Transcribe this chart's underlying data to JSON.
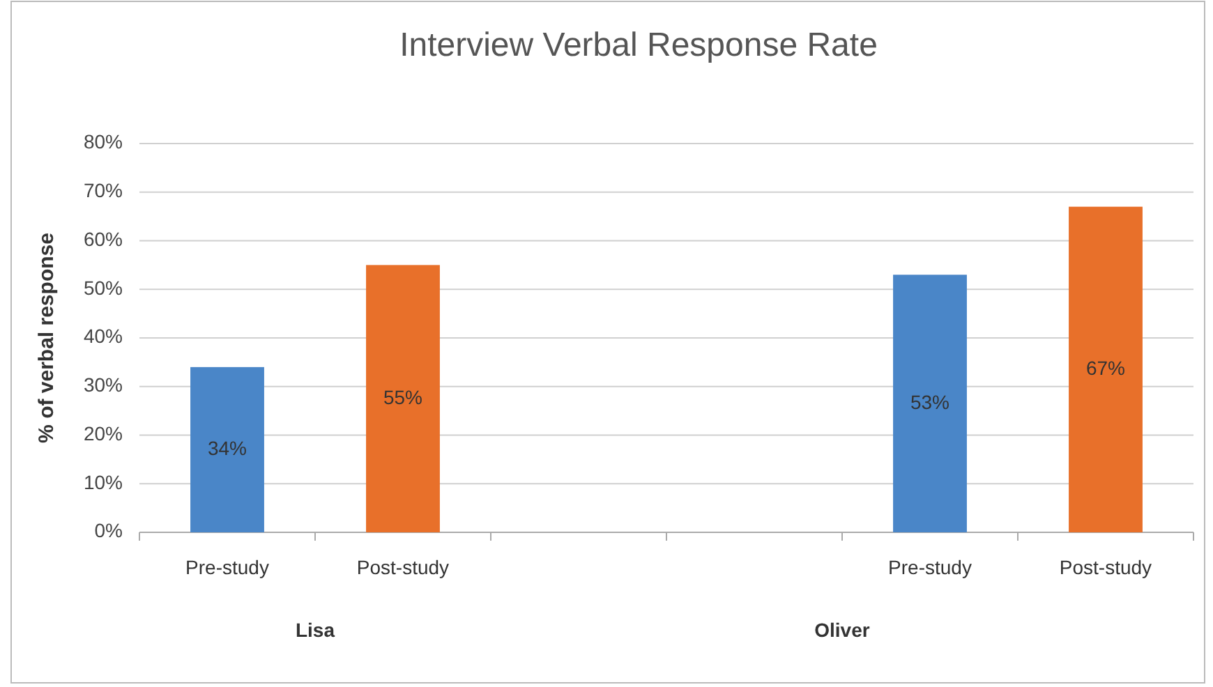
{
  "chart_data": {
    "type": "bar",
    "title": "Interview Verbal Response Rate",
    "ylabel": "% of verbal response",
    "categories": [
      "Pre-study",
      "Post-study",
      null,
      null,
      "Pre-study",
      "Post-study"
    ],
    "values": [
      34,
      55,
      null,
      null,
      53,
      67
    ],
    "colors": [
      "#4a86c8",
      "#e8702a",
      null,
      null,
      "#4a86c8",
      "#e8702a"
    ],
    "ylim": [
      0,
      80
    ],
    "yticks": [
      {
        "value": 0,
        "label": "0%"
      },
      {
        "value": 10,
        "label": "10%"
      },
      {
        "value": 20,
        "label": "20%"
      },
      {
        "value": 30,
        "label": "30%"
      },
      {
        "value": 40,
        "label": "40%"
      },
      {
        "value": 50,
        "label": "50%"
      },
      {
        "value": 60,
        "label": "60%"
      },
      {
        "value": 70,
        "label": "70%"
      },
      {
        "value": 80,
        "label": "80%"
      }
    ],
    "grid": "y",
    "value_labels": [
      "34%",
      "55%",
      null,
      null,
      "53%",
      "67%"
    ],
    "annotations": [
      "Lisa",
      "Oliver"
    ]
  }
}
